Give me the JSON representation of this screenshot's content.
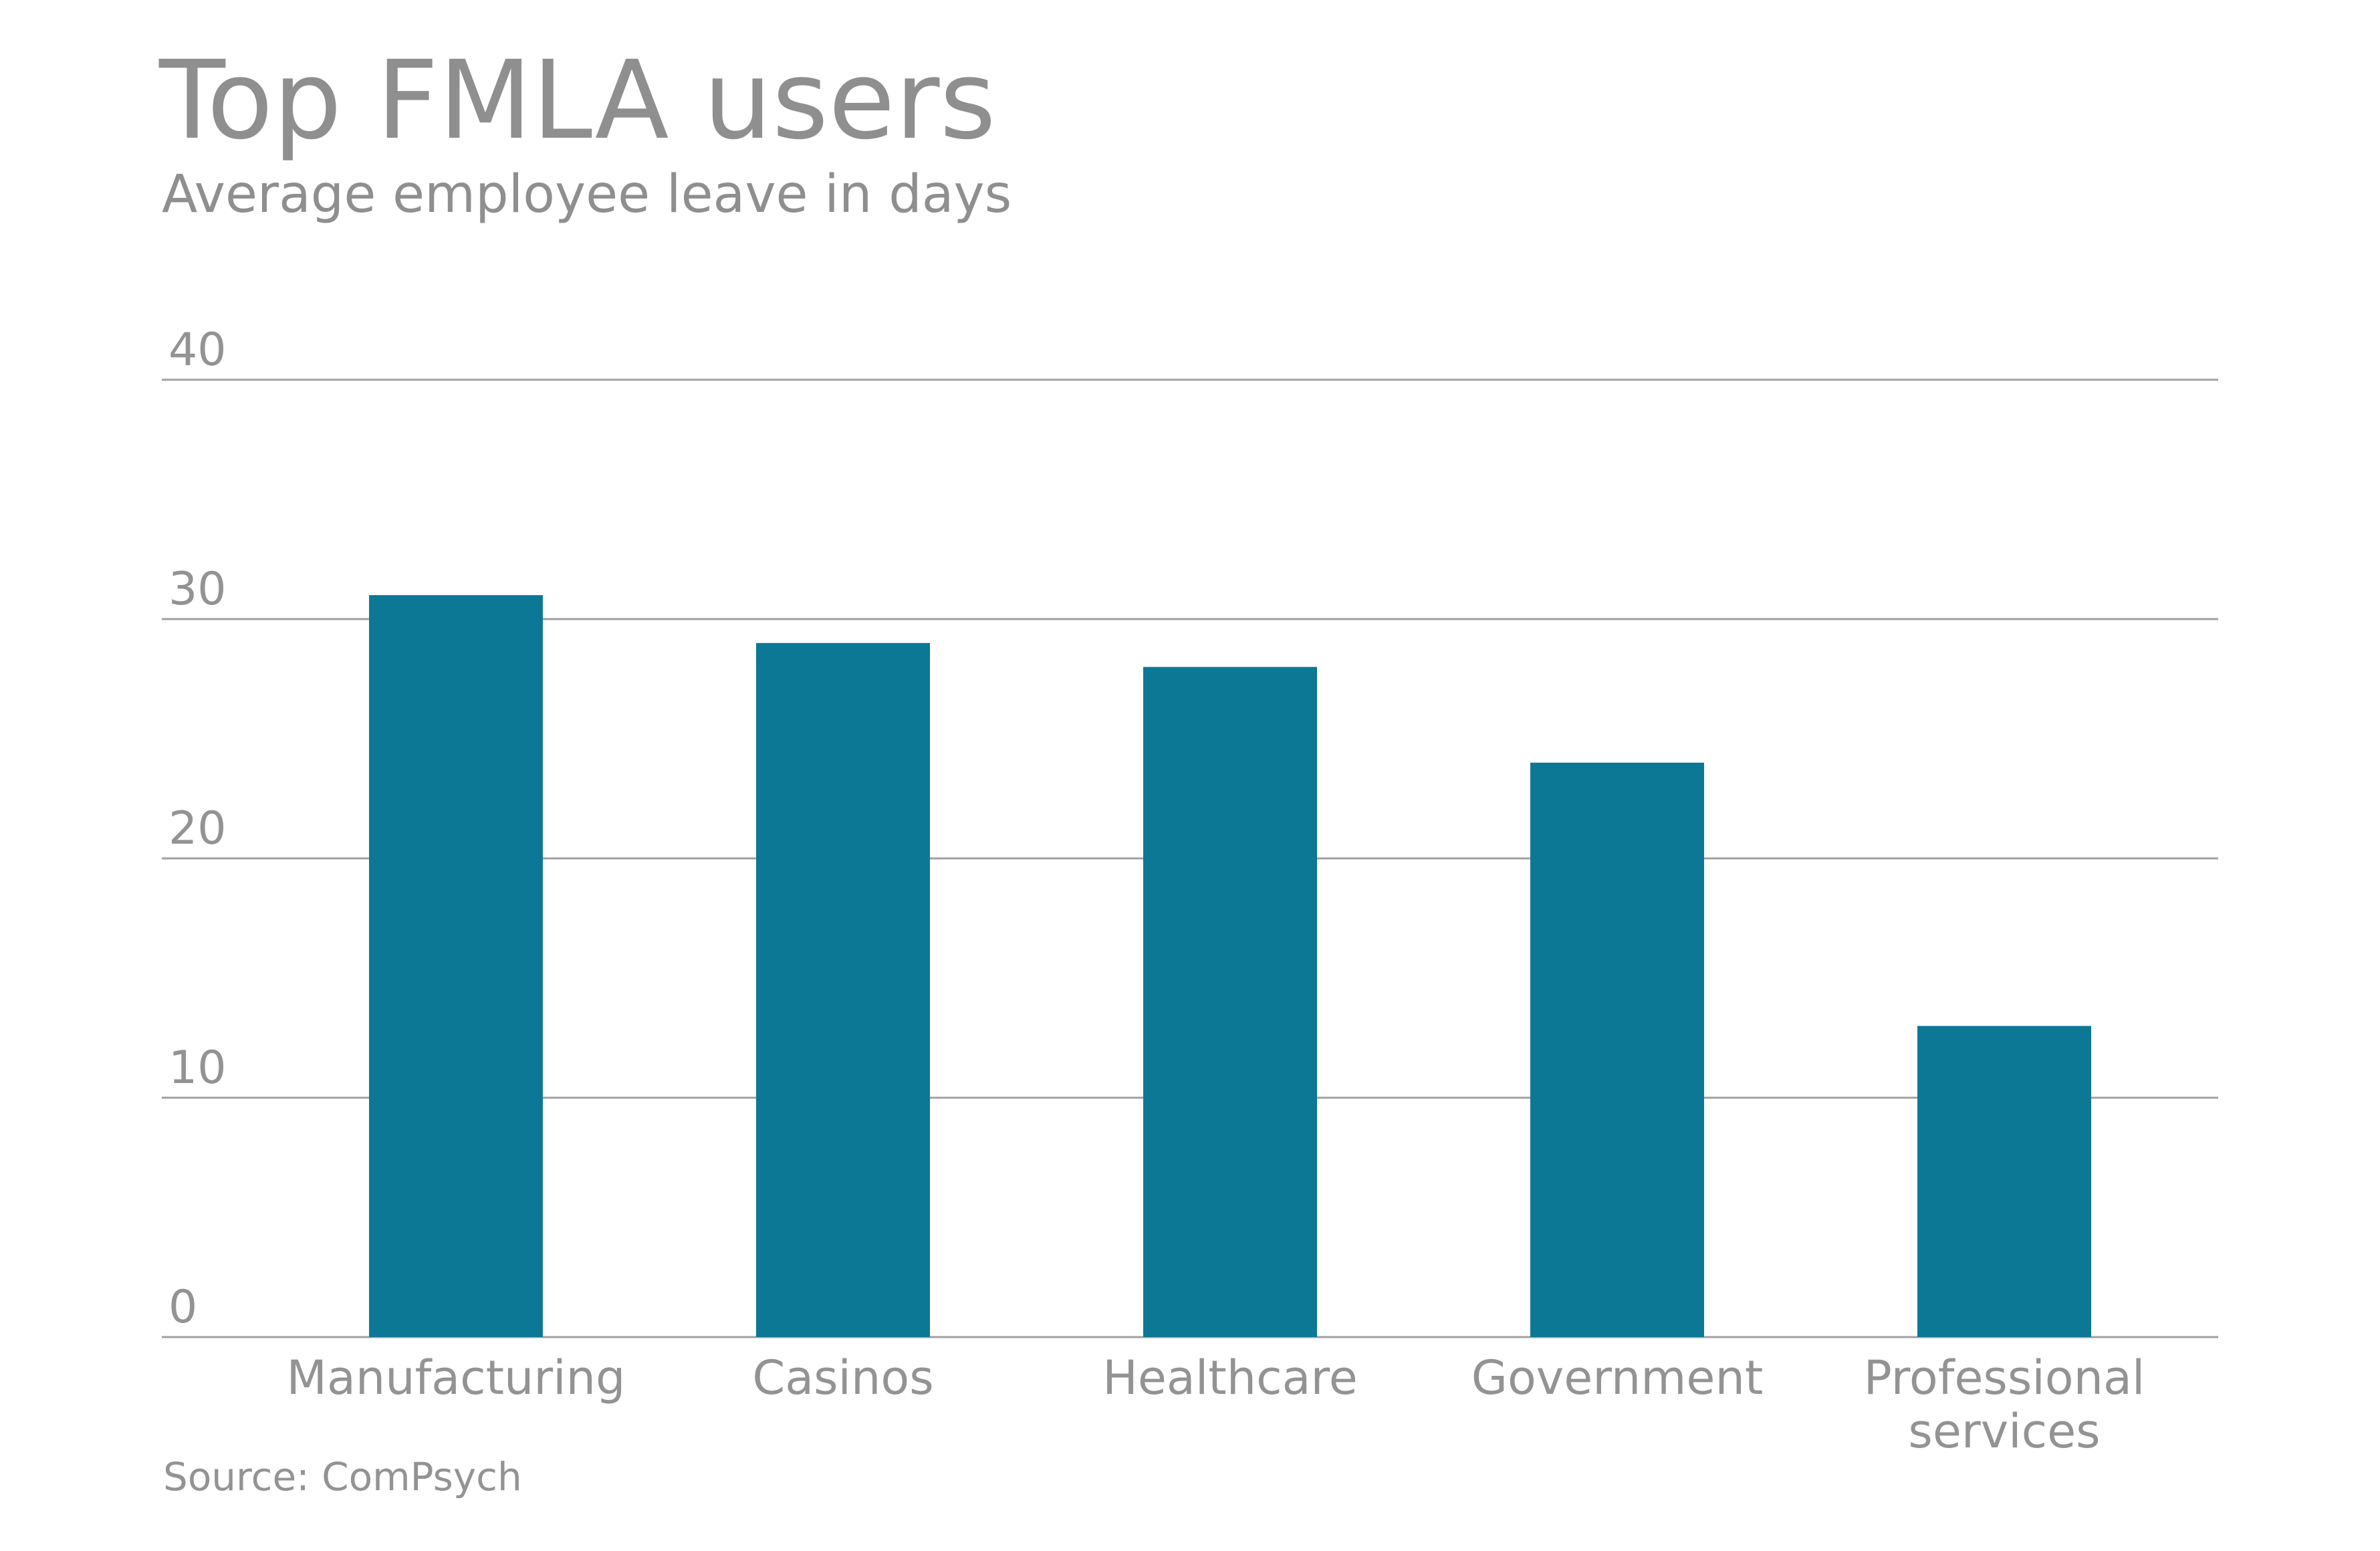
{
  "colors": {
    "bar": "#0c7896",
    "grid": "#a0a0a0",
    "text": "#939393"
  },
  "chart_data": {
    "type": "bar",
    "title": "Top FMLA users",
    "subtitle": "Average employee leave in days",
    "source": "Source: ComPsych",
    "xlabel": "",
    "ylabel": "",
    "ylim": [
      0,
      40
    ],
    "yticks": [
      0,
      10,
      20,
      30,
      40
    ],
    "grid": true,
    "categories": [
      [
        "Manufacturing"
      ],
      [
        "Casinos"
      ],
      [
        "Healthcare"
      ],
      [
        "Government"
      ],
      [
        "Professional",
        "services"
      ]
    ],
    "values": [
      31,
      29,
      28,
      24,
      13
    ]
  }
}
